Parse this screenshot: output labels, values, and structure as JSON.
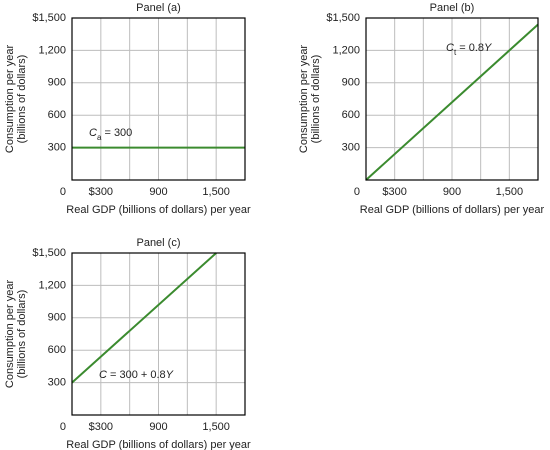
{
  "chart_data": [
    {
      "type": "line",
      "title": "Panel (a)",
      "x_label": "Real GDP (billions of dollars) per year",
      "y_label": [
        "Consumption per year",
        "(billions of dollars)"
      ],
      "xlim": [
        0,
        1800
      ],
      "ylim": [
        0,
        1500
      ],
      "xticks": [
        0,
        {
          "value": 300,
          "label": "$300"
        },
        900,
        {
          "value": 1500,
          "label": "1,500"
        }
      ],
      "yticks": [
        300,
        600,
        900,
        {
          "value": 1200,
          "label": "1,200"
        },
        {
          "value": 1500,
          "label": "$1,500"
        }
      ],
      "xgrid": [
        300,
        600,
        900,
        1200,
        1500
      ],
      "x": [
        0,
        1800
      ],
      "values": [
        300,
        300
      ],
      "color": "#3b8b2f",
      "annotation": [
        {
          "text": "C",
          "italic": true
        },
        {
          "text": "a",
          "sub": true
        },
        {
          "text": " = 300"
        }
      ]
    },
    {
      "type": "line",
      "title": "Panel (b)",
      "x_label": "Real GDP (billions of dollars) per year",
      "y_label": [
        "Consumption per year",
        "(billions of dollars)"
      ],
      "xlim": [
        0,
        1800
      ],
      "ylim": [
        0,
        1500
      ],
      "xticks": [
        0,
        {
          "value": 300,
          "label": "$300"
        },
        900,
        {
          "value": 1500,
          "label": "1,500"
        }
      ],
      "yticks": [
        300,
        600,
        900,
        {
          "value": 1200,
          "label": "1,200"
        },
        {
          "value": 1500,
          "label": "$1,500"
        }
      ],
      "xgrid": [
        300,
        600,
        900,
        1200,
        1500
      ],
      "x": [
        0,
        1800
      ],
      "values": [
        0,
        1440
      ],
      "color": "#3b8b2f",
      "annotation": [
        {
          "text": "C",
          "italic": true
        },
        {
          "text": "t",
          "sub": true
        },
        {
          "text": " = 0.8"
        },
        {
          "text": "Y",
          "italic": true
        }
      ]
    },
    {
      "type": "line",
      "title": "Panel (c)",
      "x_label": "Real GDP (billions of dollars) per year",
      "y_label": [
        "Consumption per year",
        "(billions of dollars)"
      ],
      "xlim": [
        0,
        1800
      ],
      "ylim": [
        0,
        1500
      ],
      "xticks": [
        0,
        {
          "value": 300,
          "label": "$300"
        },
        900,
        {
          "value": 1500,
          "label": "1,500"
        }
      ],
      "yticks": [
        300,
        600,
        900,
        {
          "value": 1200,
          "label": "1,200"
        },
        {
          "value": 1500,
          "label": "$1,500"
        }
      ],
      "xgrid": [
        300,
        600,
        900,
        1200,
        1500
      ],
      "x": [
        0,
        1500
      ],
      "values": [
        300,
        1500
      ],
      "color": "#3b8b2f",
      "annotation": [
        {
          "text": "C",
          "italic": true
        },
        {
          "text": " = 300 + 0.8"
        },
        {
          "text": "Y",
          "italic": true
        }
      ]
    }
  ]
}
